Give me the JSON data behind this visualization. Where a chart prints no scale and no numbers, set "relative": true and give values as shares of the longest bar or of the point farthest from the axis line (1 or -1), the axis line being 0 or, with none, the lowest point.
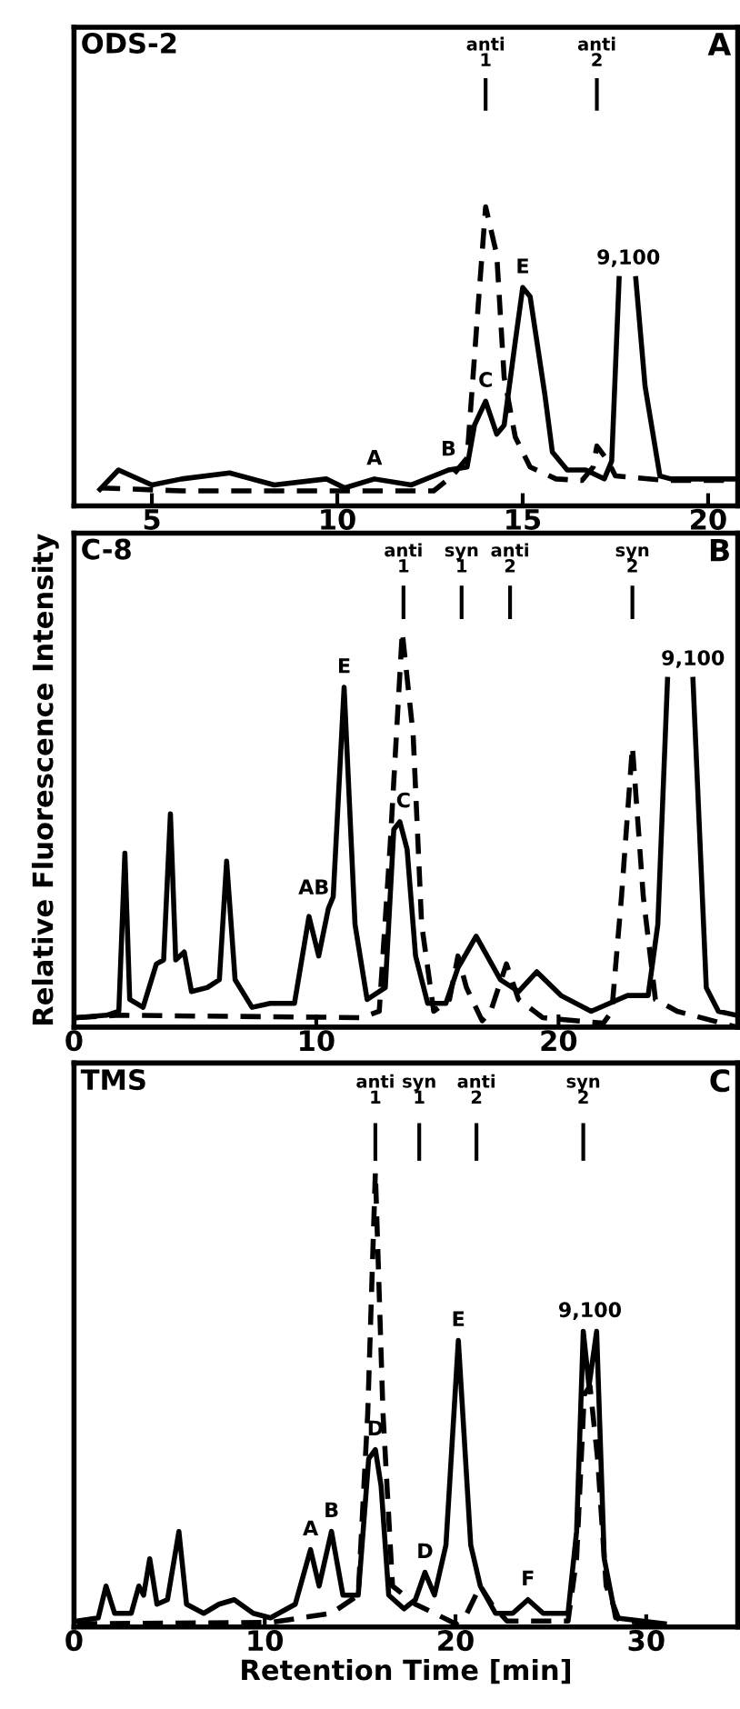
{
  "chart_data": [
    {
      "type": "line",
      "title": "ODS-2",
      "subtitle": "A",
      "relative": true,
      "xlim": [
        2.9,
        20.8
      ],
      "xticks": [
        5,
        10,
        15,
        20
      ],
      "series": [
        {
          "color": "#000000",
          "line_style": "solid",
          "x": [
            3.6,
            4.1,
            5.0,
            5.8,
            7.1,
            8.3,
            9.7,
            10.2,
            11.0,
            12.0,
            13.0,
            13.5,
            13.7,
            14.0,
            14.3,
            14.5,
            14.8,
            15.0,
            15.2,
            15.6,
            15.8,
            16.2,
            16.7,
            17.2,
            17.4,
            17.6,
            17.8,
            18.05,
            18.3,
            18.7,
            19.0,
            20.7
          ],
          "values": [
            0.055,
            0.12,
            0.07,
            0.09,
            0.11,
            0.07,
            0.09,
            0.06,
            0.09,
            0.07,
            0.12,
            0.13,
            0.27,
            0.35,
            0.24,
            0.27,
            0.55,
            0.73,
            0.7,
            0.37,
            0.18,
            0.12,
            0.12,
            0.09,
            0.15,
            0.76,
            null,
            0.76,
            0.4,
            0.1,
            0.09,
            0.09
          ]
        },
        {
          "color": "#000000",
          "line_style": "dashed",
          "x": [
            3.6,
            5.8,
            12.6,
            13.1,
            13.5,
            13.8,
            14.0,
            14.3,
            14.5,
            14.8,
            15.2,
            15.9,
            16.6,
            16.9,
            17.0,
            17.3,
            17.5,
            18.9,
            20.7
          ],
          "values": [
            0.06,
            0.05,
            0.05,
            0.1,
            0.16,
            0.67,
            1.0,
            0.84,
            0.43,
            0.23,
            0.13,
            0.09,
            0.085,
            0.13,
            0.2,
            0.15,
            0.1,
            0.085,
            0.085
          ]
        }
      ],
      "ref_lines": [
        {
          "axis": "x",
          "value": 14.0,
          "label": "anti\n1"
        },
        {
          "axis": "x",
          "value": 17.0,
          "label": "anti\n2"
        }
      ],
      "annotations": [
        {
          "text": "A",
          "x": 11.0,
          "y": 0.09
        },
        {
          "text": "B",
          "x": 13.0,
          "y": 0.12
        },
        {
          "text": "C",
          "x": 14.0,
          "y": 0.35
        },
        {
          "text": "E",
          "x": 15.0,
          "y": 0.73
        },
        {
          "text": "9,100",
          "x": 17.85,
          "y": 0.76
        }
      ]
    },
    {
      "type": "line",
      "title": "C-8",
      "subtitle": "B",
      "relative": true,
      "xlim": [
        0,
        27.4
      ],
      "xticks": [
        0,
        10,
        20
      ],
      "ylabel": "Relative Fluorescence Intensity",
      "series": [
        {
          "color": "#000000",
          "line_style": "solid",
          "x": [
            0.1,
            1.35,
            1.85,
            2.1,
            2.3,
            2.85,
            3.4,
            3.7,
            3.98,
            4.2,
            4.55,
            4.85,
            5.5,
            6.0,
            6.3,
            6.65,
            7.35,
            8.1,
            9.1,
            9.7,
            10.1,
            10.5,
            10.7,
            11.15,
            11.6,
            12.1,
            12.85,
            13.2,
            13.45,
            13.75,
            14.1,
            14.6,
            15.35,
            15.85,
            16.6,
            17.6,
            18.35,
            19.1,
            20.1,
            21.35,
            22.1,
            22.85,
            23.7,
            24.1,
            24.5,
            25.0,
            25.55,
            26.1,
            26.6,
            27.35
          ],
          "values": [
            0.024,
            0.03,
            0.04,
            0.44,
            0.07,
            0.05,
            0.16,
            0.17,
            0.54,
            0.17,
            0.19,
            0.09,
            0.1,
            0.12,
            0.42,
            0.12,
            0.05,
            0.06,
            0.06,
            0.28,
            0.18,
            0.3,
            0.33,
            0.86,
            0.26,
            0.07,
            0.1,
            0.5,
            0.52,
            0.45,
            0.18,
            0.06,
            0.06,
            0.15,
            0.23,
            0.12,
            0.09,
            0.14,
            0.08,
            0.04,
            0.06,
            0.08,
            0.08,
            0.26,
            0.88,
            null,
            0.88,
            0.1,
            0.04,
            0.03
          ]
        },
        {
          "color": "#000000",
          "line_style": "dashed",
          "x": [
            0.1,
            1.85,
            11.85,
            12.6,
            13.05,
            13.55,
            14.0,
            14.35,
            14.85,
            15.5,
            15.85,
            16.2,
            16.85,
            17.2,
            17.85,
            18.35,
            19.35,
            21.85,
            22.2,
            22.6,
            23.05,
            23.5,
            24.0,
            24.9,
            27.35
          ],
          "values": [
            0.024,
            0.03,
            0.024,
            0.04,
            0.46,
            1.0,
            0.74,
            0.26,
            0.04,
            0.07,
            0.18,
            0.1,
            0.016,
            0.04,
            0.16,
            0.07,
            0.024,
            0.01,
            0.04,
            0.33,
            0.71,
            0.33,
            0.07,
            0.04,
            0.0
          ]
        }
      ],
      "ref_lines": [
        {
          "axis": "x",
          "value": 13.6,
          "label": "anti\n1"
        },
        {
          "axis": "x",
          "value": 16.0,
          "label": "syn\n1"
        },
        {
          "axis": "x",
          "value": 18.0,
          "label": "anti\n2"
        },
        {
          "axis": "x",
          "value": 23.05,
          "label": "syn\n2"
        }
      ],
      "annotations": [
        {
          "text": "AB",
          "x": 9.9,
          "y": 0.3
        },
        {
          "text": "E",
          "x": 11.15,
          "y": 0.86
        },
        {
          "text": "C",
          "x": 13.6,
          "y": 0.52
        },
        {
          "text": "9,100",
          "x": 25.55,
          "y": 0.88
        }
      ]
    },
    {
      "type": "line",
      "title": "TMS",
      "subtitle": "C",
      "relative": true,
      "xlim": [
        0,
        34.8
      ],
      "xticks": [
        0,
        10,
        20,
        30
      ],
      "xlabel": "Retention Time [min]",
      "series": [
        {
          "color": "#000000",
          "line_style": "solid",
          "x": [
            0.16,
            1.27,
            1.68,
            2.13,
            3.0,
            3.4,
            3.65,
            3.97,
            4.35,
            4.9,
            5.5,
            5.9,
            6.8,
            7.6,
            8.4,
            9.4,
            10.3,
            11.6,
            12.4,
            12.85,
            13.5,
            14.1,
            14.9,
            15.45,
            15.8,
            16.1,
            16.5,
            17.3,
            17.9,
            18.4,
            18.9,
            19.5,
            20.15,
            20.8,
            21.3,
            22.1,
            23.0,
            23.8,
            24.6,
            25.9,
            26.35,
            26.7,
            27.0,
            27.4,
            27.8,
            28.4,
            30.95
          ],
          "values": [
            0.013,
            0.02,
            0.09,
            0.03,
            0.03,
            0.09,
            0.07,
            0.15,
            0.05,
            0.06,
            0.21,
            0.05,
            0.03,
            0.05,
            0.06,
            0.03,
            0.02,
            0.05,
            0.17,
            0.09,
            0.21,
            0.07,
            0.07,
            0.37,
            0.39,
            0.31,
            0.07,
            0.04,
            0.06,
            0.12,
            0.07,
            0.18,
            0.63,
            0.18,
            0.09,
            0.03,
            0.03,
            0.06,
            0.03,
            0.03,
            0.21,
            0.65,
            0.53,
            0.65,
            0.15,
            0.02,
            0.007
          ]
        },
        {
          "color": "#000000",
          "line_style": "dashed",
          "x": [
            0.16,
            10.3,
            13.5,
            14.9,
            15.4,
            15.8,
            16.2,
            16.7,
            17.9,
            18.9,
            20.0,
            20.6,
            21.3,
            21.9,
            22.7,
            25.9,
            26.35,
            26.75,
            27.05,
            27.45,
            27.9,
            28.6,
            30.95
          ],
          "values": [
            0.007,
            0.01,
            0.03,
            0.07,
            0.47,
            1.0,
            0.47,
            0.09,
            0.05,
            0.03,
            0.007,
            0.03,
            0.09,
            0.05,
            0.013,
            0.013,
            0.15,
            0.51,
            0.53,
            0.37,
            0.09,
            0.013,
            0.007
          ]
        }
      ],
      "ref_lines": [
        {
          "axis": "x",
          "value": 15.8,
          "label": "anti\n1"
        },
        {
          "axis": "x",
          "value": 18.1,
          "label": "syn\n1"
        },
        {
          "axis": "x",
          "value": 21.1,
          "label": "anti\n2"
        },
        {
          "axis": "x",
          "value": 26.7,
          "label": "syn\n2"
        }
      ],
      "annotations": [
        {
          "text": "A",
          "x": 12.4,
          "y": 0.17
        },
        {
          "text": "B",
          "x": 13.5,
          "y": 0.21
        },
        {
          "text": "D",
          "x": 15.8,
          "y": 0.39
        },
        {
          "text": "D",
          "x": 18.4,
          "y": 0.12
        },
        {
          "text": "E",
          "x": 20.15,
          "y": 0.63
        },
        {
          "text": "F",
          "x": 23.8,
          "y": 0.06
        },
        {
          "text": "9,100",
          "x": 27.05,
          "y": 0.65
        }
      ]
    }
  ]
}
